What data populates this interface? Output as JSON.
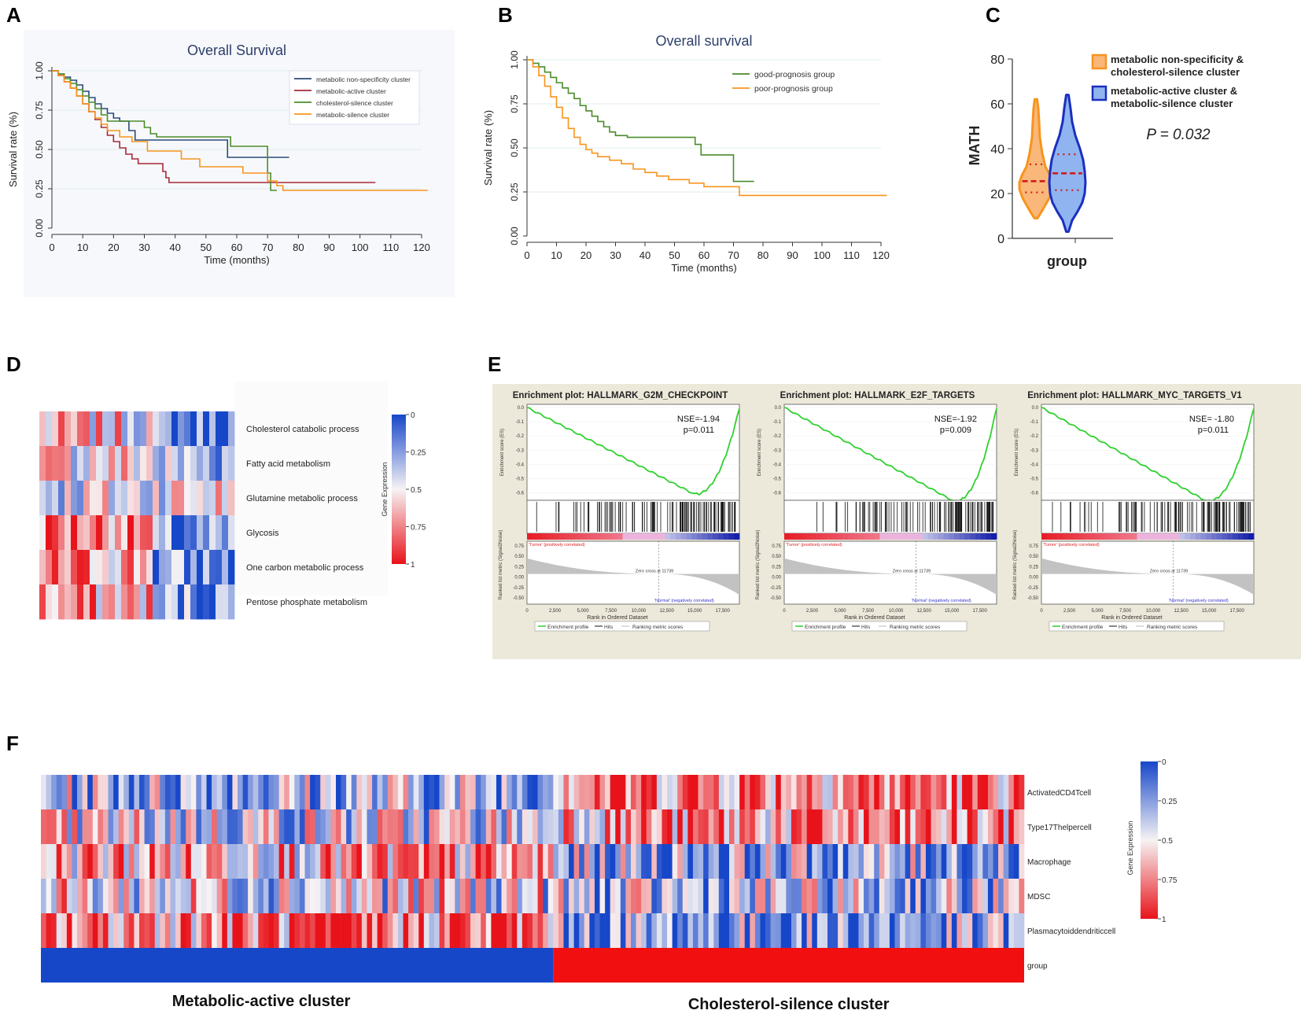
{
  "panels": {
    "A": "A",
    "B": "B",
    "C": "C",
    "D": "D",
    "E": "E",
    "F": "F"
  },
  "colors": {
    "red": "#e8131a",
    "blue": "#1747c9",
    "white": "#f6f3f4",
    "green_km": "#4a8c2a",
    "orange_km": "#f7941d",
    "navy_km": "#2c4a7a",
    "maroon_km": "#a52a3a",
    "gsea_green": "#2ed12e"
  },
  "chart_data": [
    {
      "id": "A",
      "type": "line",
      "step": true,
      "title": "Overall Survival",
      "xlabel": "Time (months)",
      "ylabel": "Survival rate (%)",
      "xlim": [
        0,
        120
      ],
      "ylim": [
        0,
        1
      ],
      "xticks": [
        "0",
        "10",
        "20",
        "30",
        "40",
        "50",
        "60",
        "70",
        "80",
        "90",
        "100",
        "110",
        "120"
      ],
      "yticks": [
        "0.00",
        "0.25",
        "0.50",
        "0.75",
        "1.00"
      ],
      "legend": "top-right",
      "series": [
        {
          "name": "metabolic non-specificity cluster",
          "color": "#2c4a7a",
          "points": [
            [
              0,
              1
            ],
            [
              2,
              0.98
            ],
            [
              4,
              0.96
            ],
            [
              6,
              0.94
            ],
            [
              8,
              0.91
            ],
            [
              10,
              0.87
            ],
            [
              12,
              0.83
            ],
            [
              14,
              0.79
            ],
            [
              16,
              0.76
            ],
            [
              18,
              0.73
            ],
            [
              20,
              0.7
            ],
            [
              22,
              0.68
            ],
            [
              25,
              0.62
            ],
            [
              27,
              0.56
            ],
            [
              30,
              0.56
            ],
            [
              40,
              0.56
            ],
            [
              57,
              0.56
            ],
            [
              57,
              0.45
            ],
            [
              77,
              0.45
            ]
          ]
        },
        {
          "name": "metabolic-active cluster",
          "color": "#a52a3a",
          "points": [
            [
              0,
              1
            ],
            [
              2,
              0.97
            ],
            [
              4,
              0.93
            ],
            [
              6,
              0.89
            ],
            [
              8,
              0.84
            ],
            [
              10,
              0.79
            ],
            [
              12,
              0.74
            ],
            [
              14,
              0.69
            ],
            [
              16,
              0.64
            ],
            [
              18,
              0.59
            ],
            [
              20,
              0.55
            ],
            [
              22,
              0.51
            ],
            [
              24,
              0.47
            ],
            [
              26,
              0.44
            ],
            [
              28,
              0.41
            ],
            [
              35,
              0.41
            ],
            [
              36,
              0.36
            ],
            [
              37,
              0.32
            ],
            [
              38,
              0.29
            ],
            [
              105,
              0.29
            ]
          ]
        },
        {
          "name": "cholesterol-silence cluster",
          "color": "#4a8c2a",
          "points": [
            [
              0,
              1
            ],
            [
              2,
              0.98
            ],
            [
              4,
              0.95
            ],
            [
              6,
              0.92
            ],
            [
              8,
              0.88
            ],
            [
              10,
              0.84
            ],
            [
              12,
              0.8
            ],
            [
              14,
              0.76
            ],
            [
              16,
              0.72
            ],
            [
              18,
              0.68
            ],
            [
              28,
              0.68
            ],
            [
              30,
              0.64
            ],
            [
              32,
              0.6
            ],
            [
              34,
              0.58
            ],
            [
              56,
              0.58
            ],
            [
              58,
              0.52
            ],
            [
              68,
              0.52
            ],
            [
              70,
              0.35
            ],
            [
              71,
              0.24
            ],
            [
              73,
              0.24
            ]
          ]
        },
        {
          "name": "metabolic-silence cluster",
          "color": "#f7941d",
          "points": [
            [
              0,
              1
            ],
            [
              2,
              0.97
            ],
            [
              4,
              0.93
            ],
            [
              6,
              0.89
            ],
            [
              8,
              0.84
            ],
            [
              10,
              0.79
            ],
            [
              12,
              0.74
            ],
            [
              14,
              0.7
            ],
            [
              16,
              0.66
            ],
            [
              18,
              0.62
            ],
            [
              22,
              0.58
            ],
            [
              26,
              0.55
            ],
            [
              30,
              0.55
            ],
            [
              31,
              0.49
            ],
            [
              39,
              0.49
            ],
            [
              42,
              0.44
            ],
            [
              48,
              0.39
            ],
            [
              58,
              0.39
            ],
            [
              62,
              0.35
            ],
            [
              70,
              0.3
            ],
            [
              73,
              0.27
            ],
            [
              75,
              0.24
            ],
            [
              122,
              0.24
            ]
          ]
        }
      ]
    },
    {
      "id": "B",
      "type": "line",
      "step": true,
      "title": "Overall survival",
      "xlabel": "Time (months)",
      "ylabel": "Survival rate (%)",
      "xlim": [
        0,
        120
      ],
      "ylim": [
        0,
        1
      ],
      "xticks": [
        "0",
        "10",
        "20",
        "30",
        "40",
        "50",
        "60",
        "70",
        "80",
        "90",
        "100",
        "110",
        "120"
      ],
      "yticks": [
        "0.00",
        "0.25",
        "0.50",
        "0.75",
        "1.00"
      ],
      "legend": "top-right",
      "series": [
        {
          "name": "good-prognosis group",
          "color": "#4a8c2a",
          "points": [
            [
              0,
              1
            ],
            [
              2,
              0.98
            ],
            [
              4,
              0.96
            ],
            [
              6,
              0.93
            ],
            [
              8,
              0.9
            ],
            [
              10,
              0.87
            ],
            [
              12,
              0.84
            ],
            [
              14,
              0.81
            ],
            [
              16,
              0.78
            ],
            [
              18,
              0.74
            ],
            [
              20,
              0.71
            ],
            [
              22,
              0.68
            ],
            [
              24,
              0.65
            ],
            [
              26,
              0.62
            ],
            [
              28,
              0.59
            ],
            [
              30,
              0.57
            ],
            [
              34,
              0.56
            ],
            [
              55,
              0.56
            ],
            [
              57,
              0.52
            ],
            [
              59,
              0.46
            ],
            [
              69,
              0.46
            ],
            [
              70,
              0.31
            ],
            [
              77,
              0.31
            ]
          ]
        },
        {
          "name": "poor-prognosis group",
          "color": "#f7941d",
          "points": [
            [
              0,
              1
            ],
            [
              2,
              0.96
            ],
            [
              4,
              0.91
            ],
            [
              6,
              0.85
            ],
            [
              8,
              0.79
            ],
            [
              10,
              0.73
            ],
            [
              12,
              0.67
            ],
            [
              14,
              0.61
            ],
            [
              16,
              0.56
            ],
            [
              18,
              0.52
            ],
            [
              20,
              0.49
            ],
            [
              22,
              0.47
            ],
            [
              24,
              0.45
            ],
            [
              28,
              0.43
            ],
            [
              32,
              0.41
            ],
            [
              36,
              0.38
            ],
            [
              40,
              0.36
            ],
            [
              44,
              0.34
            ],
            [
              48,
              0.32
            ],
            [
              55,
              0.3
            ],
            [
              60,
              0.28
            ],
            [
              70,
              0.28
            ],
            [
              72,
              0.23
            ],
            [
              122,
              0.23
            ]
          ]
        }
      ]
    },
    {
      "id": "C",
      "type": "violin",
      "xlabel": "group",
      "ylabel": "MATH",
      "ylim": [
        0,
        80
      ],
      "yticks": [
        "0",
        "20",
        "40",
        "60",
        "80"
      ],
      "annotation": "P = 0.032",
      "groups": [
        {
          "name": "metabolic non-specificity & cholesterol-silence cluster",
          "legend_line1": "metabolic non-specificity &",
          "legend_line2": "cholesterol-silence cluster",
          "color": "#f7941d",
          "fill": "#f9b77a",
          "min": 9,
          "max": 62,
          "q1": 20.5,
          "median": 25.5,
          "q3": 33
        },
        {
          "name": "metabolic-active cluster & metabolic-silence cluster",
          "legend_line1": "metabolic-active cluster &",
          "legend_line2": "metabolic-silence cluster",
          "color": "#1b2fbf",
          "fill": "#8fb4ef",
          "min": 3,
          "max": 64,
          "q1": 21.5,
          "median": 29,
          "q3": 37.5
        }
      ]
    },
    {
      "id": "D",
      "type": "heatmap",
      "rows": [
        "Cholesterol catabolic process",
        "Fatty acid metabolism",
        "Glutamine metabolic process",
        "Glycosis",
        "One carbon metabolic process",
        "Pentose phosphate metabolism"
      ],
      "columns": 31,
      "colorbar": {
        "label": "Gene Expression",
        "ticks": [
          "0",
          "0.25",
          "0.5",
          "0.75",
          "1"
        ]
      }
    },
    {
      "id": "E",
      "type": "line",
      "plots": [
        {
          "title": "Enrichment plot: HALLMARK_G2M_CHECKPOINT",
          "nes": "NSE=-1.94",
          "p": "p=0.011",
          "min_es": -0.61,
          "min_rank": 15000
        },
        {
          "title": "Enrichment plot: HALLMARK_E2F_TARGETS",
          "nes": "NSE=-1.92",
          "p": "p=0.009",
          "min_es": -0.66,
          "min_rank": 15200
        },
        {
          "title": "Enrichment plot: HALLMARK_MYC_TARGETS_V1",
          "nes": "NSE= -1.80",
          "p": "p=0.011",
          "min_es": -0.66,
          "min_rank": 14800
        }
      ],
      "es_ylabel": "Enrichment score (ES)",
      "es_yticks": [
        "0.0",
        "-0.1",
        "-0.2",
        "-0.3",
        "-0.4",
        "-0.5",
        "-0.6"
      ],
      "rank_ylabel": "Ranked list metric (Signal2Noise)",
      "rank_yticks": [
        "0.75",
        "0.50",
        "0.25",
        "0.00",
        "-0.25",
        "-0.50"
      ],
      "xticks": [
        "0",
        "2,500",
        "5,000",
        "7,500",
        "10,000",
        "12,500",
        "15,000",
        "17,500"
      ],
      "xlabel": "Rank in Ordered Dataset",
      "tumor_label": "'Tumor' (positively correlated)",
      "normal_label": "'Normal' (negatively correlated)",
      "zero_cross": "Zero cross at 11739",
      "legend": [
        "Enrichment profile",
        "Hits",
        "Ranking metric scores"
      ]
    },
    {
      "id": "F",
      "type": "heatmap",
      "rows": [
        "ActivatedCD4Tcell",
        "Type17Thelpercell",
        "Macrophage",
        "MDSC",
        "Plasmacytoiddendriticcell",
        "group"
      ],
      "columns": 190,
      "colorbar": {
        "label": "Gene Expression",
        "ticks": [
          "0",
          "0.25",
          "0.5",
          "0.75",
          "1"
        ]
      },
      "groups": [
        {
          "name": "Metabolic-active cluster",
          "color": "#1747c9"
        },
        {
          "name": "Cholesterol-silence cluster",
          "color": "#f20f0f"
        }
      ]
    }
  ]
}
